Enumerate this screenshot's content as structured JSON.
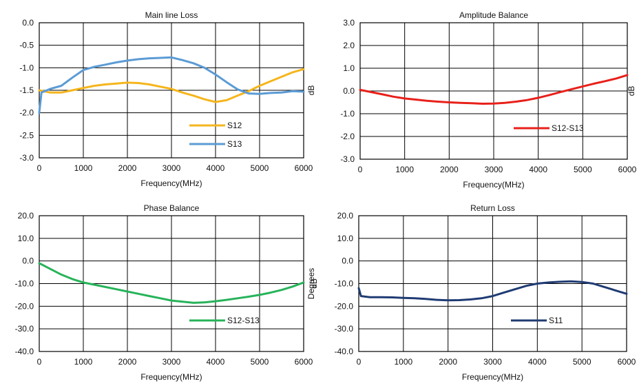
{
  "chart_data": [
    {
      "type": "line",
      "title": "Main line Loss",
      "xlabel": "Frequency(MHz)",
      "ylabel": "dB",
      "xlim": [
        0,
        6000
      ],
      "ylim": [
        -3.0,
        0.0
      ],
      "x_ticks": [
        "0",
        "1000",
        "2000",
        "3000",
        "4000",
        "5000",
        "6000"
      ],
      "y_ticks": [
        "0.0",
        "-0.5",
        "-1.0",
        "-1.5",
        "-2.0",
        "-2.5",
        "-3.0"
      ],
      "grid": true,
      "legend_position": "bottom-right",
      "series": [
        {
          "name": "S12",
          "color": "#f5b51c",
          "x": [
            0,
            250,
            500,
            750,
            1000,
            1250,
            1500,
            1750,
            2000,
            2250,
            2500,
            2750,
            3000,
            3250,
            3500,
            3750,
            4000,
            4250,
            4500,
            4750,
            5000,
            5250,
            5500,
            5750,
            6000
          ],
          "y": [
            -1.5,
            -1.55,
            -1.55,
            -1.5,
            -1.45,
            -1.4,
            -1.37,
            -1.35,
            -1.33,
            -1.34,
            -1.37,
            -1.42,
            -1.47,
            -1.55,
            -1.62,
            -1.7,
            -1.76,
            -1.72,
            -1.62,
            -1.52,
            -1.4,
            -1.3,
            -1.2,
            -1.1,
            -1.03
          ]
        },
        {
          "name": "S13",
          "color": "#5b9bd5",
          "x": [
            0,
            50,
            250,
            500,
            750,
            1000,
            1250,
            1500,
            1750,
            2000,
            2250,
            2500,
            2750,
            3000,
            3250,
            3500,
            3750,
            4000,
            4250,
            4500,
            4750,
            5000,
            5250,
            5500,
            5750,
            6000
          ],
          "y": [
            -2.0,
            -1.55,
            -1.47,
            -1.4,
            -1.22,
            -1.05,
            -0.98,
            -0.93,
            -0.88,
            -0.84,
            -0.81,
            -0.79,
            -0.78,
            -0.77,
            -0.83,
            -0.9,
            -1.0,
            -1.15,
            -1.32,
            -1.48,
            -1.57,
            -1.58,
            -1.56,
            -1.55,
            -1.52,
            -1.53
          ]
        }
      ]
    },
    {
      "type": "line",
      "title": "Amplitude Balance",
      "xlabel": "Frequency(MHz)",
      "ylabel": "dB",
      "xlim": [
        0,
        6000
      ],
      "ylim": [
        -3.0,
        3.0
      ],
      "x_ticks": [
        "0",
        "1000",
        "2000",
        "3000",
        "4000",
        "5000",
        "6000"
      ],
      "y_ticks": [
        "3.0",
        "2.0",
        "1.0",
        "0.0",
        "-1.0",
        "-2.0",
        "-3.0"
      ],
      "grid": true,
      "legend_position": "bottom-right",
      "series": [
        {
          "name": "S12-S13",
          "color": "#e8201a",
          "x": [
            0,
            250,
            500,
            750,
            1000,
            1250,
            1500,
            1750,
            2000,
            2250,
            2500,
            2750,
            3000,
            3250,
            3500,
            3750,
            4000,
            4250,
            4500,
            4750,
            5000,
            5250,
            5500,
            5750,
            6000
          ],
          "y": [
            0.05,
            -0.05,
            -0.15,
            -0.25,
            -0.33,
            -0.38,
            -0.43,
            -0.47,
            -0.5,
            -0.52,
            -0.54,
            -0.56,
            -0.55,
            -0.52,
            -0.47,
            -0.4,
            -0.3,
            -0.18,
            -0.05,
            0.08,
            0.2,
            0.32,
            0.43,
            0.55,
            0.7
          ]
        }
      ]
    },
    {
      "type": "line",
      "title": "Phase Balance",
      "xlabel": "Frequency(MHz)",
      "ylabel": "Degrees",
      "xlim": [
        0,
        6000
      ],
      "ylim": [
        -40.0,
        20.0
      ],
      "x_ticks": [
        "0",
        "1000",
        "2000",
        "3000",
        "4000",
        "5000",
        "6000"
      ],
      "y_ticks": [
        "20.0",
        "10.0",
        "0.0",
        "-10.0",
        "-20.0",
        "-30.0",
        "-40.0"
      ],
      "grid": true,
      "legend_position": "bottom-right",
      "series": [
        {
          "name": "S12-S13",
          "color": "#27b35a",
          "x": [
            0,
            250,
            500,
            750,
            1000,
            1250,
            1500,
            1750,
            2000,
            2250,
            2500,
            2750,
            3000,
            3250,
            3500,
            3750,
            4000,
            4250,
            4500,
            4750,
            5000,
            5250,
            5500,
            5750,
            6000
          ],
          "y": [
            -1.0,
            -3.5,
            -6.0,
            -8.0,
            -9.5,
            -10.5,
            -11.5,
            -12.5,
            -13.5,
            -14.5,
            -15.5,
            -16.5,
            -17.5,
            -18.0,
            -18.5,
            -18.3,
            -17.8,
            -17.2,
            -16.5,
            -15.8,
            -15.0,
            -14.0,
            -12.8,
            -11.3,
            -9.5
          ]
        }
      ]
    },
    {
      "type": "line",
      "title": "Return Loss",
      "xlabel": "Frequency(MHz)",
      "ylabel": "dB",
      "xlim": [
        0,
        6000
      ],
      "ylim": [
        -40.0,
        20.0
      ],
      "x_ticks": [
        "0",
        "1000",
        "2000",
        "3000",
        "4000",
        "5000",
        "6000"
      ],
      "y_ticks": [
        "20.0",
        "10.0",
        "0.0",
        "-10.0",
        "-20.0",
        "-30.0",
        "-40.0"
      ],
      "grid": true,
      "legend_position": "bottom-right",
      "series": [
        {
          "name": "S11",
          "color": "#1f3b73",
          "x": [
            0,
            50,
            250,
            500,
            750,
            1000,
            1250,
            1500,
            1750,
            2000,
            2250,
            2500,
            2750,
            3000,
            3250,
            3500,
            3750,
            4000,
            4250,
            4500,
            4750,
            5000,
            5250,
            5500,
            5750,
            6000
          ],
          "y": [
            -12.0,
            -15.5,
            -16.0,
            -16.0,
            -16.1,
            -16.3,
            -16.5,
            -16.8,
            -17.2,
            -17.4,
            -17.3,
            -17.0,
            -16.5,
            -15.5,
            -14.0,
            -12.5,
            -11.0,
            -10.0,
            -9.5,
            -9.2,
            -9.0,
            -9.3,
            -10.0,
            -11.5,
            -13.0,
            -14.5
          ]
        }
      ]
    }
  ]
}
